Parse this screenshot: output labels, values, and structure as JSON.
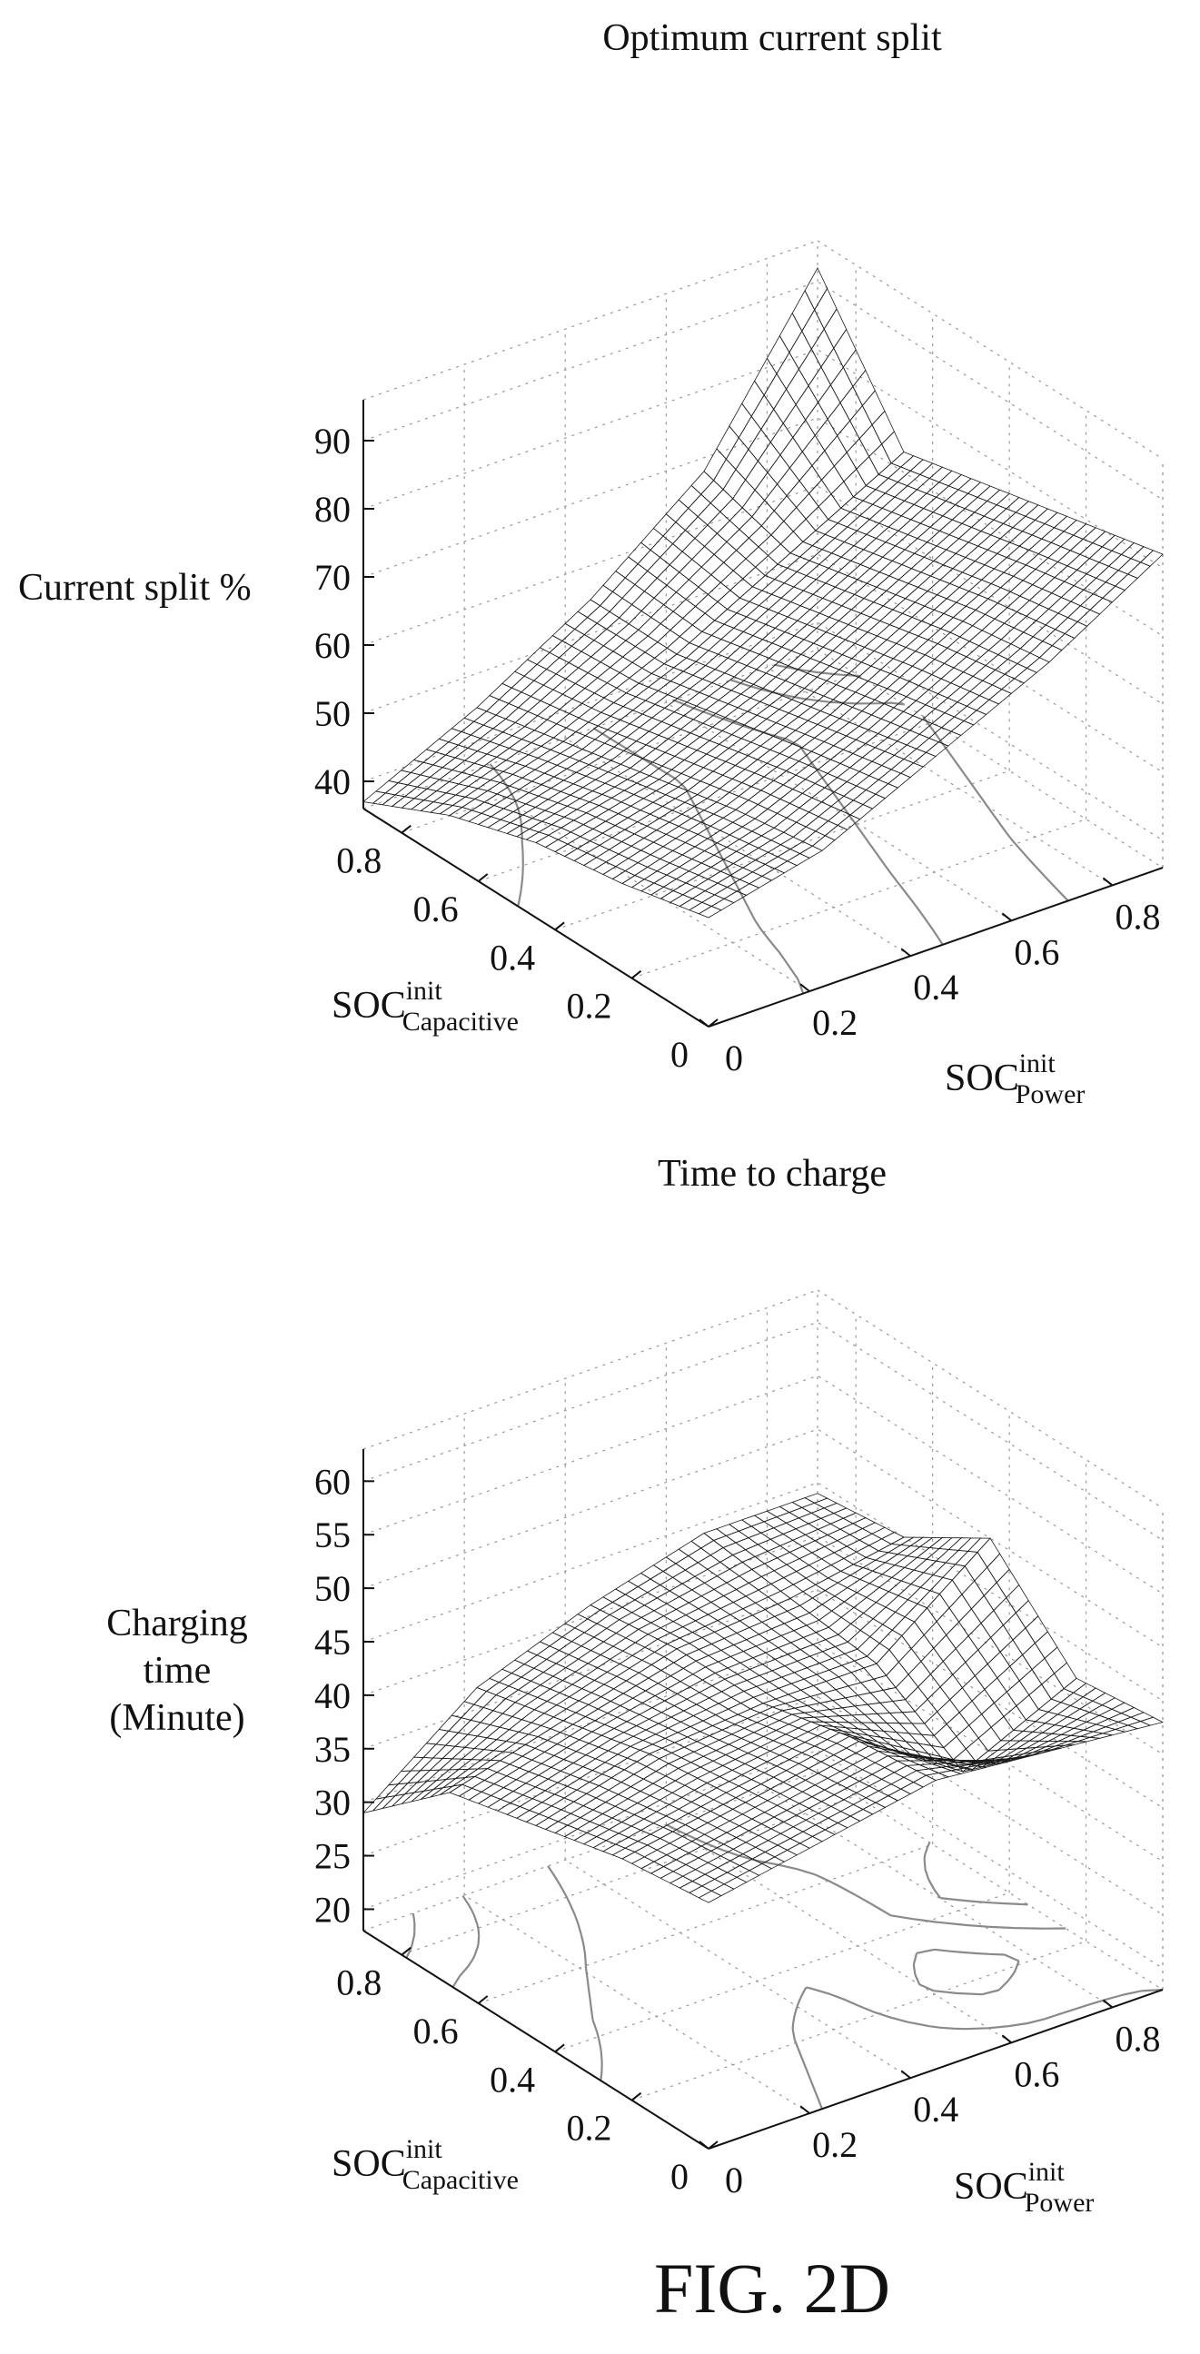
{
  "figure_caption": "FIG. 2D",
  "chart_data": [
    {
      "type": "surface",
      "title": "Optimum current split",
      "zlabel": "Current split %",
      "x_axis": {
        "name": "SOC",
        "superscript": "init",
        "subscript": "Power"
      },
      "y_axis": {
        "name": "SOC",
        "superscript": "init",
        "subscript": "Capacitive"
      },
      "x_ticks": [
        "0",
        "0.2",
        "0.4",
        "0.6",
        "0.8"
      ],
      "y_ticks": [
        "0",
        "0.2",
        "0.4",
        "0.6",
        "0.8"
      ],
      "z_ticks": [
        "40",
        "50",
        "60",
        "70",
        "80",
        "90"
      ],
      "xlim": [
        0,
        0.9
      ],
      "ylim": [
        0,
        0.9
      ],
      "zlim": [
        36,
        96
      ],
      "contours_on_floor": true,
      "grid": true,
      "surface_samples": {
        "x": [
          0,
          0.225,
          0.45,
          0.675,
          0.9
        ],
        "y": [
          0,
          0.225,
          0.45,
          0.675,
          0.9
        ],
        "z": [
          [
            52,
            56,
            64,
            72,
            82
          ],
          [
            49,
            54,
            61,
            70,
            79
          ],
          [
            47,
            51,
            58,
            67,
            76
          ],
          [
            43,
            48,
            55,
            64,
            73
          ],
          [
            37,
            45,
            55,
            68,
            92
          ]
        ]
      }
    },
    {
      "type": "surface",
      "title": "Time to charge",
      "zlabel_lines": [
        "Charging",
        "time",
        "(Minute)"
      ],
      "x_axis": {
        "name": "SOC",
        "superscript": "init",
        "subscript": "Power"
      },
      "y_axis": {
        "name": "SOC",
        "superscript": "init",
        "subscript": "Capacitive"
      },
      "x_ticks": [
        "0",
        "0.2",
        "0.4",
        "0.6",
        "0.8"
      ],
      "y_ticks": [
        "0",
        "0.2",
        "0.4",
        "0.6",
        "0.8"
      ],
      "z_ticks": [
        "20",
        "25",
        "30",
        "35",
        "40",
        "45",
        "50",
        "55",
        "60"
      ],
      "xlim": [
        0,
        0.9
      ],
      "ylim": [
        0,
        0.9
      ],
      "zlim": [
        18,
        63
      ],
      "contours_on_floor": true,
      "grid": true,
      "surface_samples": {
        "x": [
          0,
          0.225,
          0.45,
          0.675,
          0.9
        ],
        "y": [
          0,
          0.225,
          0.45,
          0.675,
          0.9
        ],
        "z": [
          [
            41,
            43,
            45,
            44,
            43
          ],
          [
            40,
            42,
            44,
            37,
            42
          ],
          [
            38,
            41,
            42,
            42,
            50
          ],
          [
            36,
            39,
            42,
            43,
            45
          ],
          [
            29,
            37,
            41,
            44,
            44
          ]
        ]
      }
    }
  ]
}
